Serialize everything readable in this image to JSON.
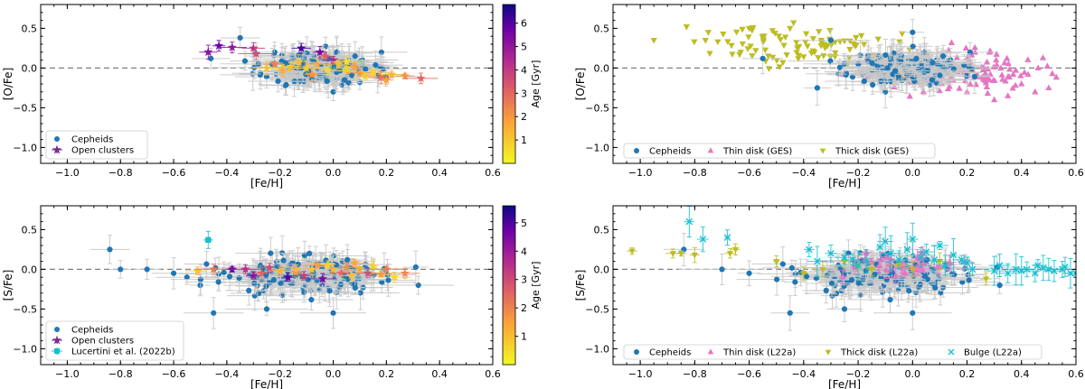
{
  "figure": {
    "description_panels": [
      "top-left",
      "top-right",
      "bottom-left",
      "bottom-right"
    ],
    "refline_style": "dashed gray at y = 0"
  },
  "chart_data": [
    {
      "id": "tl",
      "type": "scatter",
      "xlabel": "[Fe/H]",
      "ylabel": "[O/Fe]",
      "xlim": [
        -1.1,
        0.6
      ],
      "ylim": [
        -1.2,
        0.8
      ],
      "xticks": [
        "−1.0",
        "−0.8",
        "−0.6",
        "−0.4",
        "−0.2",
        "0.0",
        "0.2",
        "0.4",
        "0.6"
      ],
      "yticks": [
        "0.5",
        "0.0",
        "−0.5",
        "−1.0"
      ],
      "colorbar": {
        "label": "Age [Gyr]",
        "range": [
          0,
          6.8
        ],
        "ticks": [
          "1",
          "2",
          "3",
          "4",
          "5",
          "6"
        ]
      },
      "legend": {
        "position": "lower-left",
        "entries": [
          {
            "label": "Cepheids",
            "marker": "circle",
            "color": "#1f77b4"
          },
          {
            "label": "Open clusters",
            "marker": "star",
            "color": "#7b2a8c"
          }
        ]
      },
      "series": [
        {
          "name": "Cepheids",
          "marker": "circle",
          "color": "#1f77b4",
          "cloud": {
            "xmean": -0.05,
            "xsd": 0.1,
            "ymean": 0.0,
            "ysd": 0.1,
            "n": 200,
            "seed": 11
          },
          "points": [
            [
              -0.46,
              0.12
            ],
            [
              -0.35,
              0.38
            ],
            [
              -0.29,
              0.18
            ],
            [
              -0.18,
              -0.22
            ],
            [
              -0.22,
              0.2
            ],
            [
              0.0,
              -0.3
            ],
            [
              0.1,
              -0.18
            ],
            [
              -0.03,
              0.15
            ]
          ]
        },
        {
          "name": "Open clusters",
          "marker": "star",
          "color_by_age": true,
          "points": [
            [
              -0.47,
              0.2,
              5.2
            ],
            [
              -0.43,
              0.28,
              5.8
            ],
            [
              -0.38,
              0.26,
              5.0
            ],
            [
              -0.3,
              0.25,
              4.2
            ],
            [
              -0.29,
              0.18,
              3.5
            ],
            [
              -0.22,
              0.05,
              2.5
            ],
            [
              -0.19,
              -0.03,
              1.5
            ],
            [
              -0.16,
              0.02,
              1.0
            ],
            [
              -0.13,
              0.08,
              1.2
            ],
            [
              -0.12,
              0.25,
              6.2
            ],
            [
              -0.1,
              0.0,
              0.8
            ],
            [
              -0.08,
              -0.08,
              2.0
            ],
            [
              -0.06,
              0.05,
              1.6
            ],
            [
              -0.05,
              0.2,
              5.5
            ],
            [
              -0.03,
              0.15,
              3.2
            ],
            [
              -0.02,
              -0.02,
              0.6
            ],
            [
              0.0,
              0.1,
              4.5
            ],
            [
              0.02,
              0.05,
              1.3
            ],
            [
              0.05,
              -0.03,
              0.9
            ],
            [
              0.08,
              0.02,
              1.8
            ],
            [
              0.1,
              -0.06,
              2.2
            ],
            [
              0.12,
              -0.1,
              1.0
            ],
            [
              0.15,
              -0.05,
              0.7
            ],
            [
              0.18,
              -0.12,
              2.8
            ],
            [
              0.2,
              -0.15,
              1.9
            ],
            [
              0.22,
              -0.08,
              1.4
            ],
            [
              0.27,
              -0.1,
              2.0
            ],
            [
              0.33,
              -0.13,
              3.0
            ],
            [
              -0.25,
              0.0,
              1.1
            ],
            [
              0.05,
              0.08,
              0.5
            ]
          ]
        }
      ]
    },
    {
      "id": "tr",
      "type": "scatter",
      "xlabel": "[Fe/H]",
      "ylabel": "[O/Fe]",
      "xlim": [
        -1.1,
        0.6
      ],
      "ylim": [
        -1.2,
        0.8
      ],
      "xticks": [
        "−1.0",
        "−0.8",
        "−0.6",
        "−0.4",
        "−0.2",
        "0.0",
        "0.2",
        "0.4",
        "0.6"
      ],
      "yticks": [
        "0.5",
        "0.0",
        "−0.5",
        "−1.0"
      ],
      "legend": {
        "position": "lower-center",
        "entries": [
          {
            "label": "Cepheids",
            "marker": "circle",
            "color": "#1f77b4"
          },
          {
            "label": "Thin disk (GES)",
            "marker": "triangle-up",
            "color": "#e377c2"
          },
          {
            "label": "Thick disk (GES)",
            "marker": "triangle-down",
            "color": "#bcbd22"
          }
        ]
      },
      "series": [
        {
          "name": "Thin disk (GES)",
          "marker": "triangle-up",
          "color": "#e377c2",
          "cloud": {
            "xmean": 0.15,
            "xsd": 0.15,
            "ymean": -0.05,
            "ysd": 0.12,
            "n": 150,
            "seed": 23
          },
          "points": [
            [
              0.45,
              -0.3
            ],
            [
              0.5,
              -0.25
            ],
            [
              0.35,
              -0.35
            ],
            [
              0.3,
              -0.4
            ],
            [
              0.4,
              -0.2
            ],
            [
              0.2,
              -0.3
            ]
          ]
        },
        {
          "name": "Thick disk (GES)",
          "marker": "triangle-down",
          "color": "#bcbd22",
          "cloud": {
            "xmean": -0.4,
            "xsd": 0.17,
            "ymean": 0.28,
            "ysd": 0.12,
            "n": 90,
            "seed": 37
          },
          "points": [
            [
              -0.95,
              0.35
            ],
            [
              -0.83,
              0.52
            ],
            [
              -0.75,
              0.45
            ],
            [
              -0.6,
              0.5
            ],
            [
              -0.45,
              0.5
            ],
            [
              0.0,
              0.05
            ],
            [
              0.1,
              -0.05
            ],
            [
              0.15,
              0.0
            ]
          ]
        },
        {
          "name": "Cepheids",
          "marker": "circle",
          "color": "#1f77b4",
          "cloud": {
            "xmean": -0.02,
            "xsd": 0.1,
            "ymean": 0.0,
            "ysd": 0.1,
            "n": 200,
            "seed": 11
          },
          "points": [
            [
              -0.55,
              0.12
            ],
            [
              -0.3,
              0.35
            ],
            [
              0.0,
              0.45
            ],
            [
              -0.35,
              -0.25
            ],
            [
              -0.1,
              -0.3
            ]
          ]
        }
      ]
    },
    {
      "id": "bl",
      "type": "scatter",
      "xlabel": "[Fe/H]",
      "ylabel": "[S/Fe]",
      "xlim": [
        -1.1,
        0.6
      ],
      "ylim": [
        -1.2,
        0.8
      ],
      "xticks": [
        "−1.0",
        "−0.8",
        "−0.6",
        "−0.4",
        "−0.2",
        "0.0",
        "0.2",
        "0.4",
        "0.6"
      ],
      "yticks": [
        "0.5",
        "0.0",
        "−0.5",
        "−1.0"
      ],
      "colorbar": {
        "label": "Age [Gyr]",
        "range": [
          0,
          5.6
        ],
        "ticks": [
          "1",
          "2",
          "3",
          "4",
          "5"
        ]
      },
      "legend": {
        "position": "lower-left",
        "entries": [
          {
            "label": "Cepheids",
            "marker": "circle",
            "color": "#1f77b4"
          },
          {
            "label": "Open clusters",
            "marker": "star",
            "color": "#7b2a8c"
          },
          {
            "label": "Lucertini et al. (2022b)",
            "marker": "square",
            "color": "#17becf"
          }
        ]
      },
      "series": [
        {
          "name": "Cepheids",
          "marker": "circle",
          "color": "#1f77b4",
          "cloud": {
            "xmean": -0.1,
            "xsd": 0.15,
            "ymean": -0.07,
            "ysd": 0.11,
            "n": 220,
            "seed": 53
          },
          "points": [
            [
              -0.84,
              0.25
            ],
            [
              -0.7,
              0.0
            ],
            [
              -0.6,
              -0.05
            ],
            [
              -0.55,
              -0.1
            ],
            [
              -0.45,
              -0.55
            ],
            [
              -0.25,
              -0.5
            ],
            [
              0.0,
              -0.55
            ],
            [
              0.32,
              -0.2
            ],
            [
              -0.8,
              0.0
            ],
            [
              -0.5,
              -0.2
            ]
          ]
        },
        {
          "name": "Open clusters",
          "marker": "star",
          "color_by_age": true,
          "points": [
            [
              -0.51,
              -0.02,
              1.0
            ],
            [
              -0.45,
              0.0,
              2.2
            ],
            [
              -0.38,
              0.0,
              4.8
            ],
            [
              -0.33,
              0.0,
              3.5
            ],
            [
              -0.3,
              -0.08,
              4.2
            ],
            [
              -0.27,
              -0.05,
              2.5
            ],
            [
              -0.24,
              0.02,
              3.0
            ],
            [
              -0.2,
              -0.02,
              1.2
            ],
            [
              -0.17,
              -0.1,
              5.0
            ],
            [
              -0.14,
              -0.04,
              2.0
            ],
            [
              -0.11,
              -0.08,
              3.2
            ],
            [
              -0.08,
              0.0,
              0.8
            ],
            [
              -0.06,
              0.05,
              1.5
            ],
            [
              -0.04,
              -0.12,
              4.5
            ],
            [
              -0.02,
              0.06,
              0.6
            ],
            [
              0.0,
              0.0,
              1.0
            ],
            [
              0.03,
              -0.05,
              2.4
            ],
            [
              0.05,
              0.02,
              1.8
            ],
            [
              0.07,
              -0.08,
              0.9
            ],
            [
              0.1,
              0.0,
              1.3
            ],
            [
              0.13,
              -0.05,
              2.9
            ],
            [
              0.15,
              0.04,
              0.7
            ],
            [
              0.18,
              -0.06,
              1.6
            ],
            [
              0.2,
              0.0,
              2.1
            ],
            [
              0.23,
              -0.1,
              0.5
            ],
            [
              0.27,
              -0.05,
              1.9
            ],
            [
              -0.14,
              0.0,
              1.1
            ],
            [
              0.08,
              0.08,
              1.4
            ]
          ]
        },
        {
          "name": "Lucertini et al. (2022b)",
          "marker": "square",
          "color": "#17becf",
          "points": [
            [
              -0.47,
              0.37
            ]
          ]
        }
      ]
    },
    {
      "id": "br",
      "type": "scatter",
      "xlabel": "[Fe/H]",
      "ylabel": "[S/Fe]",
      "xlim": [
        -1.1,
        0.6
      ],
      "ylim": [
        -1.2,
        0.8
      ],
      "xticks": [
        "−1.0",
        "−0.8",
        "−0.6",
        "−0.4",
        "−0.2",
        "0.0",
        "0.2",
        "0.4",
        "0.6"
      ],
      "yticks": [
        "0.5",
        "0.0",
        "−0.5",
        "−1.0"
      ],
      "legend": {
        "position": "lower-center",
        "entries": [
          {
            "label": "Cepheids",
            "marker": "circle",
            "color": "#1f77b4"
          },
          {
            "label": "Thin disk (L22a)",
            "marker": "triangle-up",
            "color": "#e377c2"
          },
          {
            "label": "Thick disk (L22a)",
            "marker": "triangle-down",
            "color": "#bcbd22"
          },
          {
            "label": "Bulge (L22a)",
            "marker": "x",
            "color": "#17becf"
          }
        ]
      },
      "series": [
        {
          "name": "Cepheids",
          "marker": "circle",
          "color": "#1f77b4",
          "cloud": {
            "xmean": -0.1,
            "xsd": 0.15,
            "ymean": -0.07,
            "ysd": 0.11,
            "n": 220,
            "seed": 53
          },
          "points": [
            [
              -0.84,
              0.25
            ],
            [
              -0.7,
              0.0
            ],
            [
              -0.6,
              -0.05
            ],
            [
              -0.45,
              -0.55
            ],
            [
              -0.25,
              -0.5
            ],
            [
              0.0,
              -0.55
            ],
            [
              0.32,
              -0.2
            ]
          ]
        },
        {
          "name": "Thin disk (L22a)",
          "marker": "triangle-up",
          "color": "#e377c2",
          "cloud": {
            "xmean": 0.0,
            "xsd": 0.12,
            "ymean": 0.05,
            "ysd": 0.07,
            "n": 30,
            "seed": 71
          },
          "points": []
        },
        {
          "name": "Thick disk (L22a)",
          "marker": "triangle-down",
          "color": "#bcbd22",
          "points": [
            [
              -1.03,
              0.23
            ],
            [
              -0.88,
              0.2
            ],
            [
              -0.85,
              0.2
            ],
            [
              -0.8,
              0.18
            ],
            [
              -0.67,
              0.2
            ],
            [
              -0.65,
              0.25
            ],
            [
              -0.5,
              0.1
            ],
            [
              -0.33,
              0.0
            ],
            [
              -0.25,
              0.1
            ],
            [
              -0.2,
              0.05
            ],
            [
              -0.15,
              0.0
            ],
            [
              -0.05,
              0.05
            ],
            [
              0.0,
              0.0
            ],
            [
              0.1,
              0.1
            ],
            [
              0.27,
              -0.12
            ],
            [
              -0.4,
              -0.05
            ]
          ]
        },
        {
          "name": "Bulge (L22a)",
          "marker": "x",
          "color": "#17becf",
          "points": [
            [
              -0.82,
              0.6
            ],
            [
              -0.77,
              0.38
            ],
            [
              -0.68,
              0.4
            ],
            [
              -0.38,
              0.25
            ],
            [
              -0.35,
              0.1
            ],
            [
              -0.3,
              0.2
            ],
            [
              -0.25,
              0.15
            ],
            [
              -0.22,
              0.12
            ],
            [
              -0.2,
              0.05
            ],
            [
              -0.17,
              0.1
            ],
            [
              -0.12,
              0.28
            ],
            [
              -0.1,
              0.35
            ],
            [
              -0.08,
              0.2
            ],
            [
              -0.05,
              0.12
            ],
            [
              -0.02,
              0.25
            ],
            [
              0.0,
              0.38
            ],
            [
              0.03,
              0.15
            ],
            [
              0.05,
              0.22
            ],
            [
              0.08,
              0.12
            ],
            [
              0.1,
              0.3
            ],
            [
              0.12,
              0.05
            ],
            [
              0.15,
              0.18
            ],
            [
              0.18,
              0.12
            ],
            [
              0.2,
              0.08
            ],
            [
              0.22,
              0.0
            ],
            [
              0.3,
              -0.02
            ],
            [
              0.32,
              0.05
            ],
            [
              0.35,
              -0.05
            ],
            [
              0.38,
              0.0
            ],
            [
              0.4,
              -0.02
            ],
            [
              0.42,
              0.0
            ],
            [
              0.45,
              -0.05
            ],
            [
              0.48,
              0.02
            ],
            [
              0.5,
              0.0
            ],
            [
              0.52,
              -0.02
            ],
            [
              0.55,
              0.0
            ],
            [
              0.58,
              -0.05
            ],
            [
              0.6,
              -0.05
            ],
            [
              0.46,
              0.05
            ],
            [
              0.56,
              0.03
            ]
          ]
        }
      ]
    }
  ]
}
